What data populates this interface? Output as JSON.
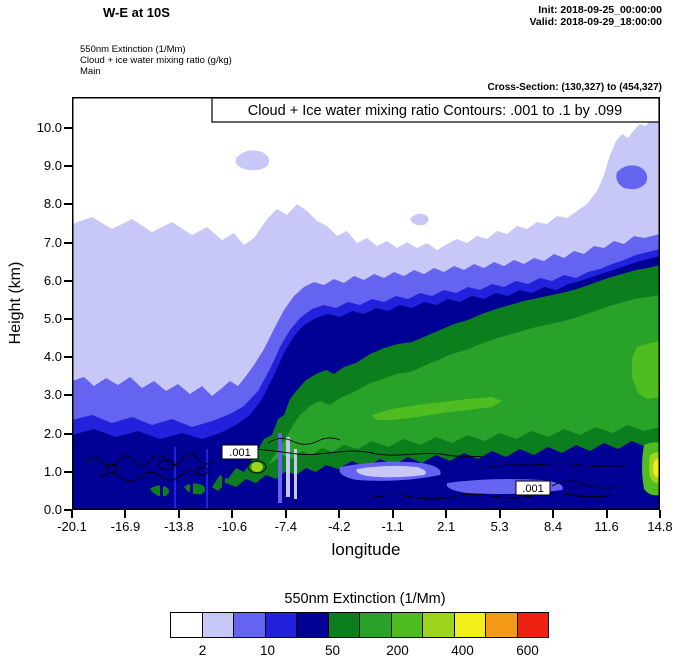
{
  "header": {
    "title": "W-E at 10S",
    "init": "Init: 2018-09-25_00:00:00",
    "valid": "Valid: 2018-09-29_18:00:00",
    "field_lines": [
      "550nm Extinction  (1/Mm)",
      "Cloud + ice water mixing ratio  (g/kg)",
      "Main"
    ],
    "cross_section": "Cross-Section: (130,327) to (454,327)"
  },
  "plot": {
    "contour_info": "Cloud + Ice water mixing ratio Contours: .001 to .1 by .099",
    "xlabel": "longitude",
    "ylabel": "Height (km)",
    "x_ticks": [
      "-20.1",
      "-16.9",
      "-13.8",
      "-10.6",
      "-7.4",
      "-4.2",
      "-1.1",
      "2.1",
      "5.3",
      "8.4",
      "11.6",
      "14.8"
    ],
    "y_ticks": [
      "0.0",
      "1.0",
      "2.0",
      "3.0",
      "4.0",
      "5.0",
      "6.0",
      "7.0",
      "8.0",
      "9.0",
      "10.0"
    ],
    "inline_labels": [
      ".001",
      ".001"
    ]
  },
  "legend": {
    "title": "550nm Extinction  (1/Mm)",
    "colors": [
      "#ffffff",
      "#c8c8f8",
      "#6464f0",
      "#2222dd",
      "#000095",
      "#0c7e1e",
      "#28a228",
      "#4fbc20",
      "#9ed41c",
      "#f2ee1a",
      "#f59a18",
      "#ee2212"
    ],
    "tick_labels": [
      "2",
      "10",
      "50",
      "200",
      "400",
      "600"
    ]
  },
  "chart_data": {
    "type": "heatmap",
    "subtype": "filled-contour-vertical-cross-section",
    "title": "W-E at 10S",
    "xlabel": "longitude",
    "ylabel": "Height (km)",
    "x_range": [
      -20.1,
      14.8
    ],
    "y_range": [
      0,
      10.5
    ],
    "x_ticks": [
      -20.1,
      -16.9,
      -13.8,
      -10.6,
      -7.4,
      -4.2,
      -1.1,
      2.1,
      5.3,
      8.4,
      11.6,
      14.8
    ],
    "y_ticks": [
      0,
      1,
      2,
      3,
      4,
      5,
      6,
      7,
      8,
      9,
      10
    ],
    "fill_field": {
      "name": "550nm Extinction (1/Mm)",
      "labeled_level_boundaries": [
        2,
        10,
        50,
        200,
        400,
        600
      ],
      "n_color_bands": 12,
      "colors": [
        "#ffffff",
        "#c8c8f8",
        "#6464f0",
        "#2222dd",
        "#000095",
        "#0c7e1e",
        "#28a228",
        "#4fbc20",
        "#9ed41c",
        "#f2ee1a",
        "#f59a18",
        "#ee2212"
      ]
    },
    "line_field": {
      "name": "Cloud + Ice water mixing ratio (g/kg)",
      "contour_levels": [
        0.001,
        0.1
      ],
      "note": "Contours: .001 to .1 by .099"
    },
    "estimated_grid": {
      "heights_km": [
        0.5,
        1,
        2,
        3,
        4,
        5,
        6,
        7,
        8,
        9,
        10
      ],
      "longitudes": [
        -20.1,
        -16.9,
        -13.8,
        -10.6,
        -7.4,
        -4.2,
        -1.1,
        2.1,
        5.3,
        8.4,
        11.6,
        14.8
      ],
      "extinction_1_per_Mm": [
        [
          30,
          30,
          25,
          15,
          30,
          30,
          30,
          30,
          30,
          30,
          40,
          300
        ],
        [
          25,
          20,
          8,
          3,
          15,
          5,
          5,
          8,
          20,
          15,
          30,
          400
        ],
        [
          4,
          8,
          15,
          30,
          60,
          150,
          150,
          150,
          150,
          150,
          150,
          250
        ],
        [
          3,
          3,
          8,
          25,
          120,
          150,
          150,
          150,
          150,
          150,
          150,
          250
        ],
        [
          3,
          3,
          4,
          8,
          60,
          120,
          150,
          150,
          150,
          150,
          150,
          250
        ],
        [
          3,
          3,
          3,
          4,
          15,
          30,
          60,
          100,
          150,
          150,
          150,
          150
        ],
        [
          2,
          3,
          3,
          3,
          8,
          10,
          15,
          20,
          30,
          60,
          100,
          120
        ],
        [
          1,
          2,
          2,
          2,
          3,
          3,
          3,
          3,
          4,
          8,
          15,
          30
        ],
        [
          1,
          1,
          1,
          1,
          1,
          2,
          2,
          2,
          3,
          3,
          4,
          15
        ],
        [
          1,
          1,
          1,
          3,
          1,
          1,
          1,
          1,
          1,
          2,
          3,
          8
        ],
        [
          1,
          1,
          1,
          1,
          1,
          1,
          1,
          1,
          1,
          1,
          2,
          3
        ]
      ]
    }
  }
}
